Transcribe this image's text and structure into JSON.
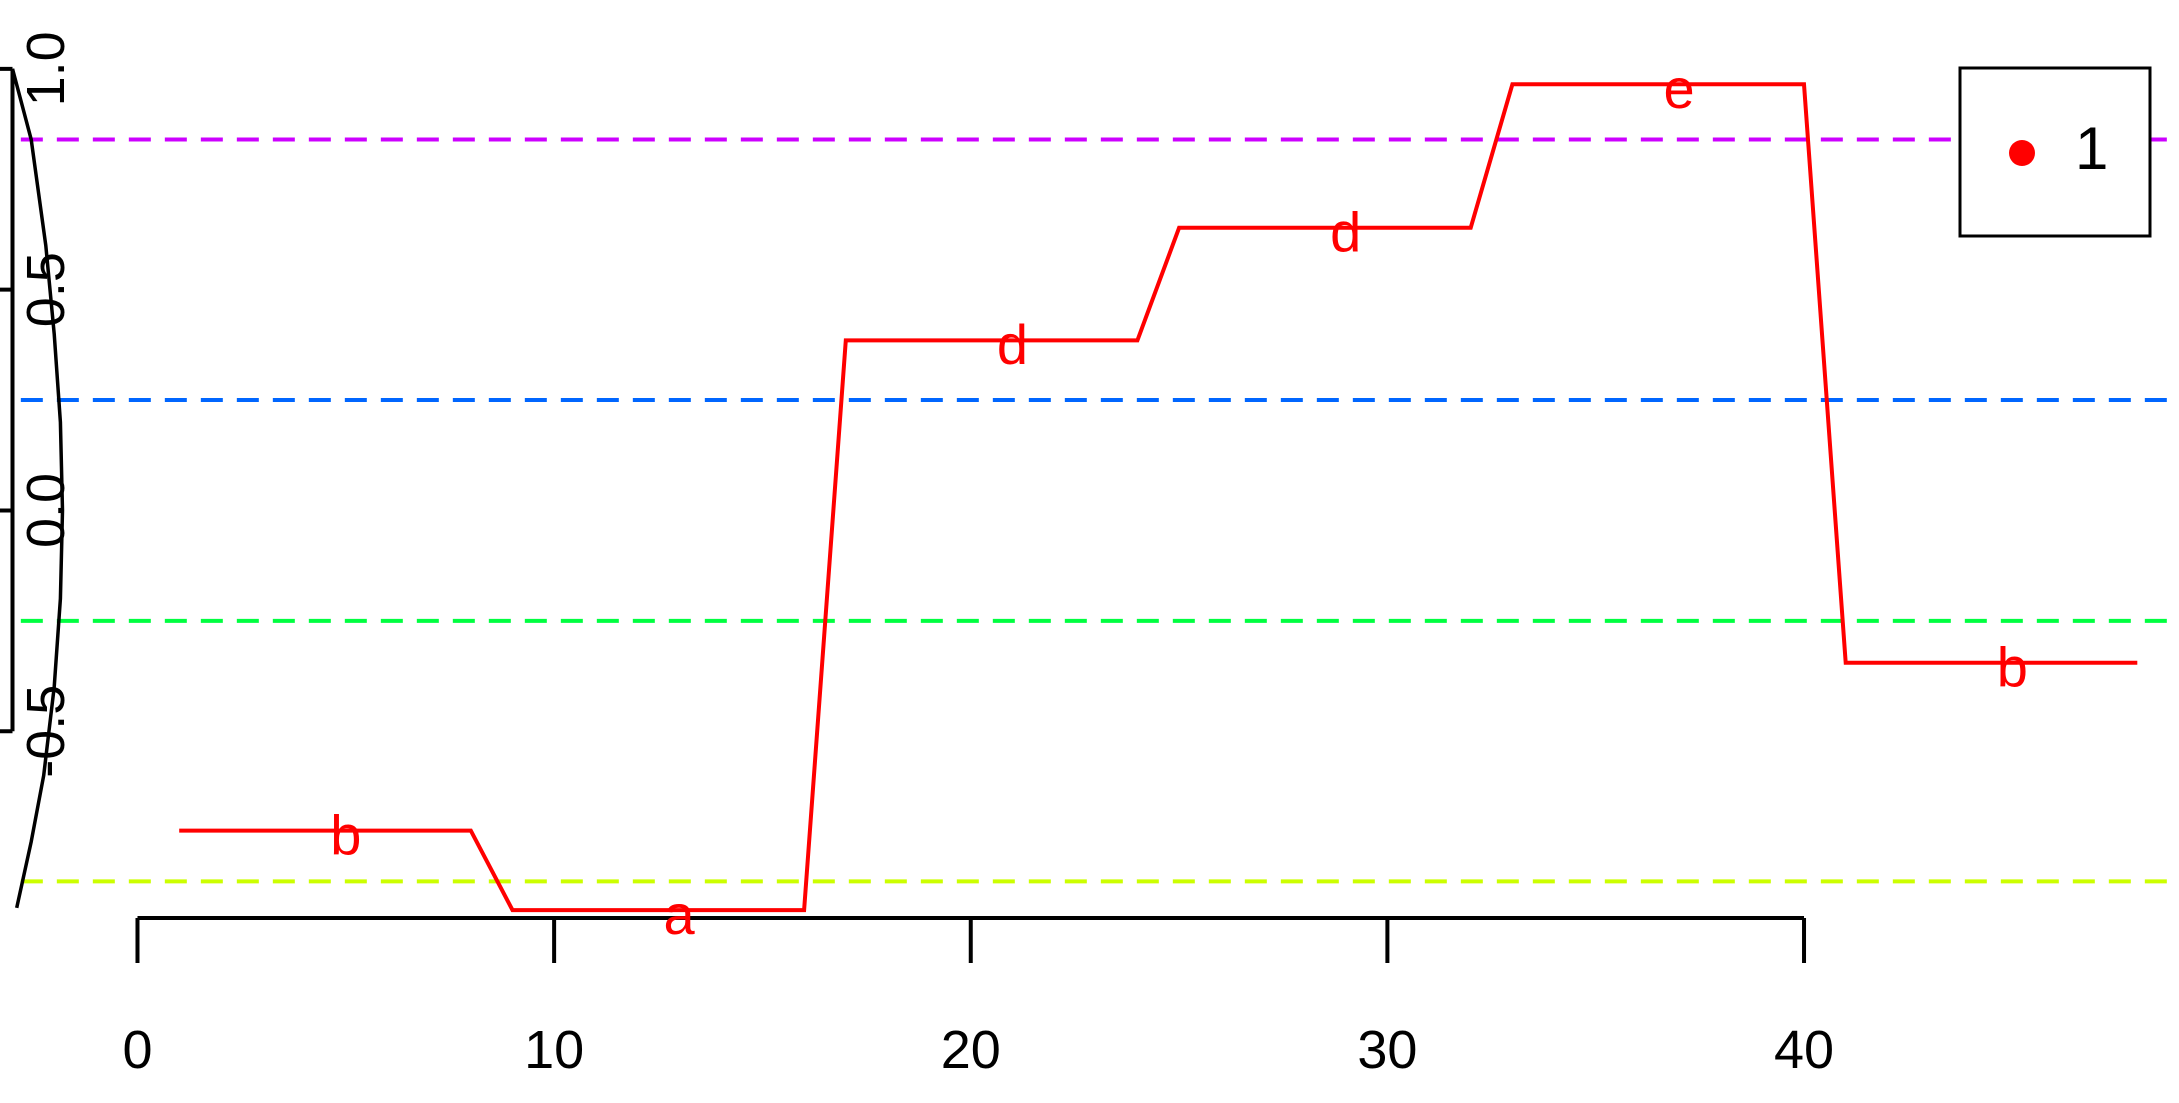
{
  "chart_data": {
    "type": "line",
    "title": "",
    "xlabel": "",
    "ylabel": "",
    "xlim": [
      -3.3,
      49
    ],
    "ylim": [
      -0.95,
      1.02
    ],
    "x_ticks": [
      0,
      10,
      20,
      30,
      40
    ],
    "y_ticks": [
      -0.5,
      0.0,
      0.5,
      1.0
    ],
    "x_tick_labels": [
      "0",
      "10",
      "20",
      "30",
      "40"
    ],
    "y_tick_labels": [
      "-0.5",
      "0.0",
      "0.5",
      "1.0"
    ],
    "grid": false,
    "legend": {
      "position": "top-right",
      "entries": [
        {
          "label": "1",
          "color": "#ff0000",
          "marker": "dot"
        }
      ]
    },
    "reference_lines": [
      {
        "y": 0.84,
        "color": "#cc00ff",
        "style": "dashed"
      },
      {
        "y": 0.25,
        "color": "#0066ff",
        "style": "dashed"
      },
      {
        "y": -0.25,
        "color": "#00ff40",
        "style": "dashed"
      },
      {
        "y": -0.84,
        "color": "#ccff00",
        "style": "dashed"
      }
    ],
    "density_curve": {
      "color": "#000000",
      "base_x": -3,
      "y": [
        1.0,
        0.84,
        0.6,
        0.4,
        0.2,
        0.0,
        -0.2,
        -0.4,
        -0.6,
        -0.75,
        -0.9
      ],
      "x": [
        -3.0,
        -2.55,
        -2.2,
        -2.0,
        -1.85,
        -1.8,
        -1.85,
        -2.0,
        -2.25,
        -2.55,
        -2.9
      ]
    },
    "series": [
      {
        "color": "#ff0000",
        "x": [
          1,
          8,
          9,
          16,
          17,
          24,
          25,
          32,
          33,
          40,
          41,
          48
        ],
        "y": [
          -0.725,
          -0.725,
          -0.905,
          -0.905,
          0.385,
          0.385,
          0.64,
          0.64,
          0.965,
          0.965,
          -0.345,
          -0.345
        ]
      }
    ],
    "segment_labels": [
      {
        "text": "b",
        "x": 5,
        "y": -0.745
      },
      {
        "text": "a",
        "x": 13,
        "y": -0.925
      },
      {
        "text": "d",
        "x": 21,
        "y": 0.365
      },
      {
        "text": "d",
        "x": 29,
        "y": 0.62
      },
      {
        "text": "e",
        "x": 37,
        "y": 0.945
      },
      {
        "text": "b",
        "x": 45,
        "y": -0.365
      }
    ]
  }
}
